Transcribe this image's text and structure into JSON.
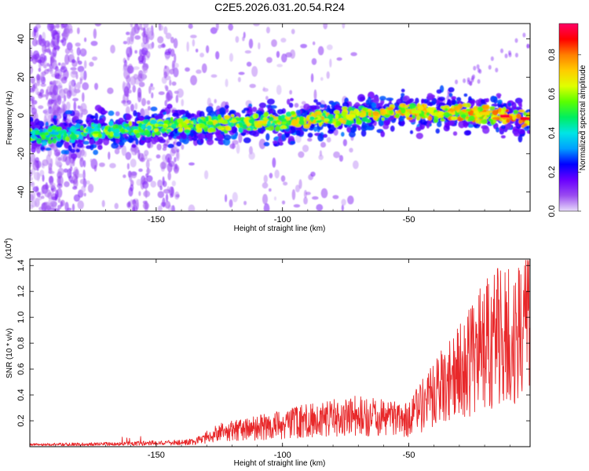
{
  "chart_data": [
    {
      "type": "heatmap",
      "title": "C2E5.2026.031.20.54.R24",
      "xlabel": "Height of straight line (km)",
      "ylabel": "Frequency (Hz)",
      "xlim": [
        -200,
        -2
      ],
      "ylim": [
        -50,
        48
      ],
      "xticks": [
        -150,
        -100,
        -50
      ],
      "yticks": [
        40,
        20,
        0,
        -20,
        -40
      ],
      "colorbar": {
        "label": "Normalized spectral amplitude",
        "ticks": [
          0.0,
          0.2,
          0.4,
          0.6,
          0.8
        ],
        "range": [
          0,
          0.96
        ],
        "colors": [
          "#e8dcfa",
          "#9a4cf0",
          "#6a00ff",
          "#0000ff",
          "#00a0ff",
          "#00e5e5",
          "#00ee60",
          "#5aff00",
          "#e0ff00",
          "#ffcc00",
          "#ff7f00",
          "#ff0000",
          "#ff0066"
        ]
      },
      "band": {
        "description_points": [
          [
            -200,
            -11
          ],
          [
            -150,
            -6
          ],
          [
            -100,
            -3
          ],
          [
            -50,
            2
          ],
          [
            -20,
            1
          ],
          [
            -2,
            -2
          ]
        ]
      }
    },
    {
      "type": "line",
      "title": "",
      "xlabel": "Height of straight line (km)",
      "ylabel": "SNR (10 * v/v)",
      "yscale_label": "(x10",
      "yscale_exp": "4",
      "yscale_close": ")",
      "xlim": [
        -200,
        -2
      ],
      "ylim": [
        0,
        1.45
      ],
      "xticks": [
        -150,
        -100,
        -50
      ],
      "yticks": [
        0.2,
        0.4,
        0.6,
        0.8,
        1.0,
        1.2,
        1.4
      ],
      "color": "#e8282a",
      "envelope": [
        [
          -200,
          0.02
        ],
        [
          -165,
          0.03
        ],
        [
          -135,
          0.05
        ],
        [
          -125,
          0.15
        ],
        [
          -110,
          0.2
        ],
        [
          -90,
          0.28
        ],
        [
          -70,
          0.33
        ],
        [
          -50,
          0.3
        ],
        [
          -40,
          0.55
        ],
        [
          -30,
          0.8
        ],
        [
          -20,
          1.1
        ],
        [
          -10,
          1.2
        ],
        [
          -2,
          1.35
        ]
      ]
    }
  ]
}
